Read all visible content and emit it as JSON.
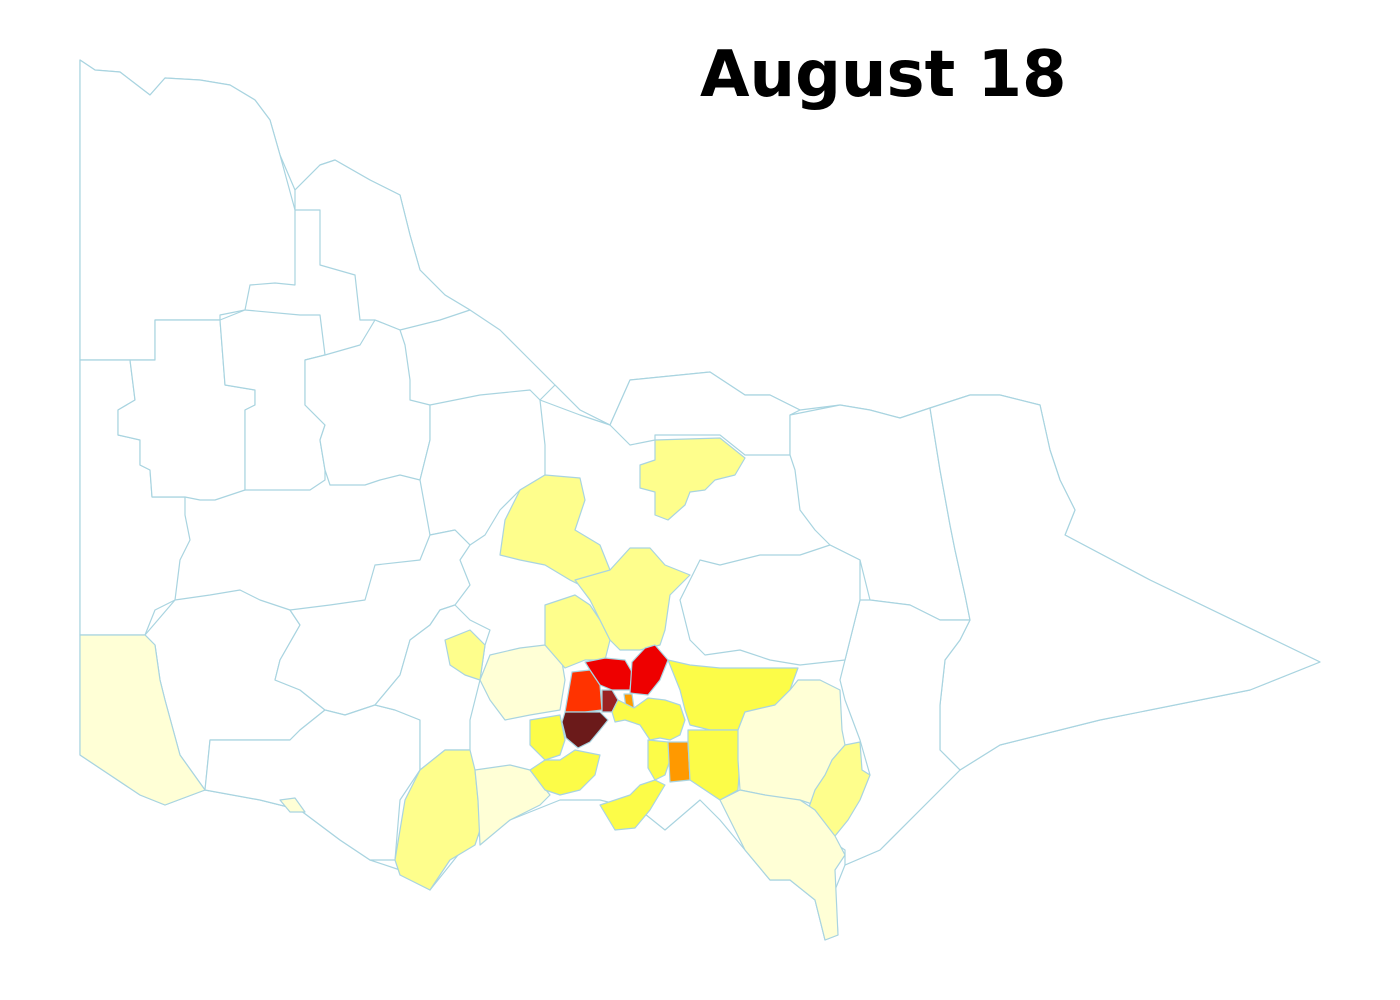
{
  "title": "August 18",
  "colors": {
    "border": "#a9d4e0",
    "none": "#ffffff",
    "very_low": "#ffffd6",
    "low": "#fefe8c",
    "medium_low": "#fcfc48",
    "medium": "#ff9900",
    "high": "#ff3300",
    "very_high": "#ee0000",
    "severe": "#9b2222",
    "extreme": "#6b1a1a"
  }
}
